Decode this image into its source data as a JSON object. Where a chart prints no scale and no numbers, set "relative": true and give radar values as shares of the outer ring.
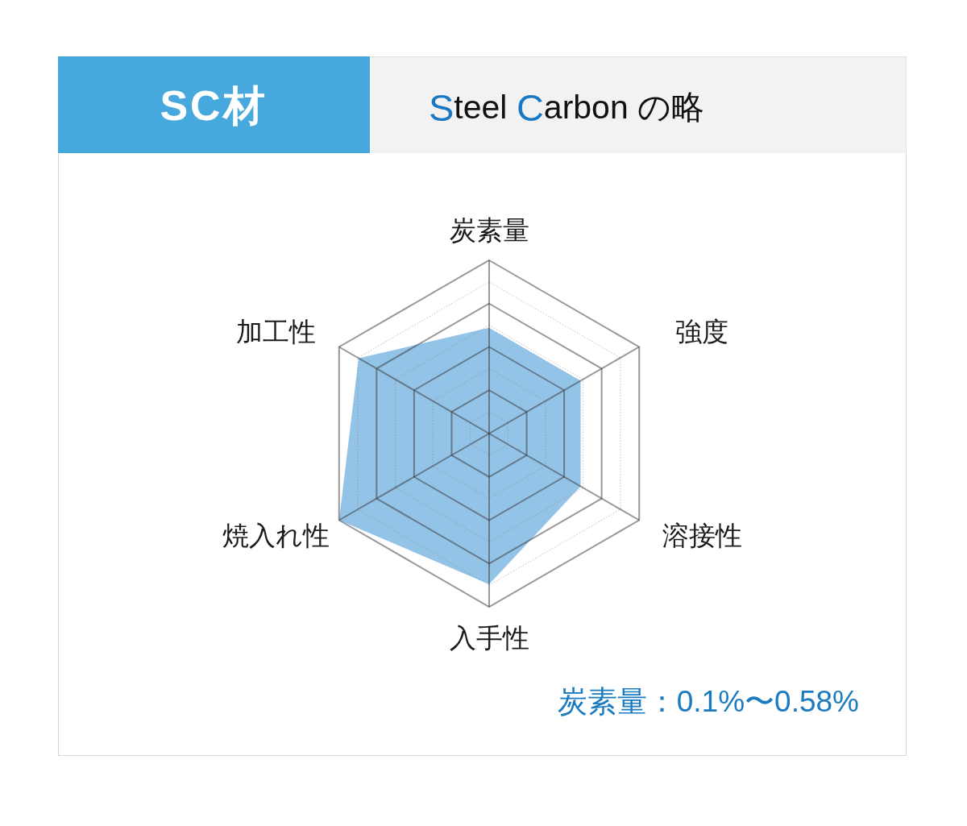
{
  "chart_data": {
    "type": "radar",
    "title": "SC材",
    "subtitle": "Steel Carbon の略",
    "categories": [
      "炭素量",
      "強度",
      "溶接性",
      "入手性",
      "焼入れ性",
      "加工性"
    ],
    "series": [
      {
        "color": "#94c3e8",
        "values": [
          0.61,
          0.61,
          0.61,
          0.87,
          1,
          0.87
        ]
      }
    ],
    "relative": true,
    "grid": true,
    "annotations": [
      "炭素量：0.1%〜0.58%"
    ]
  }
}
